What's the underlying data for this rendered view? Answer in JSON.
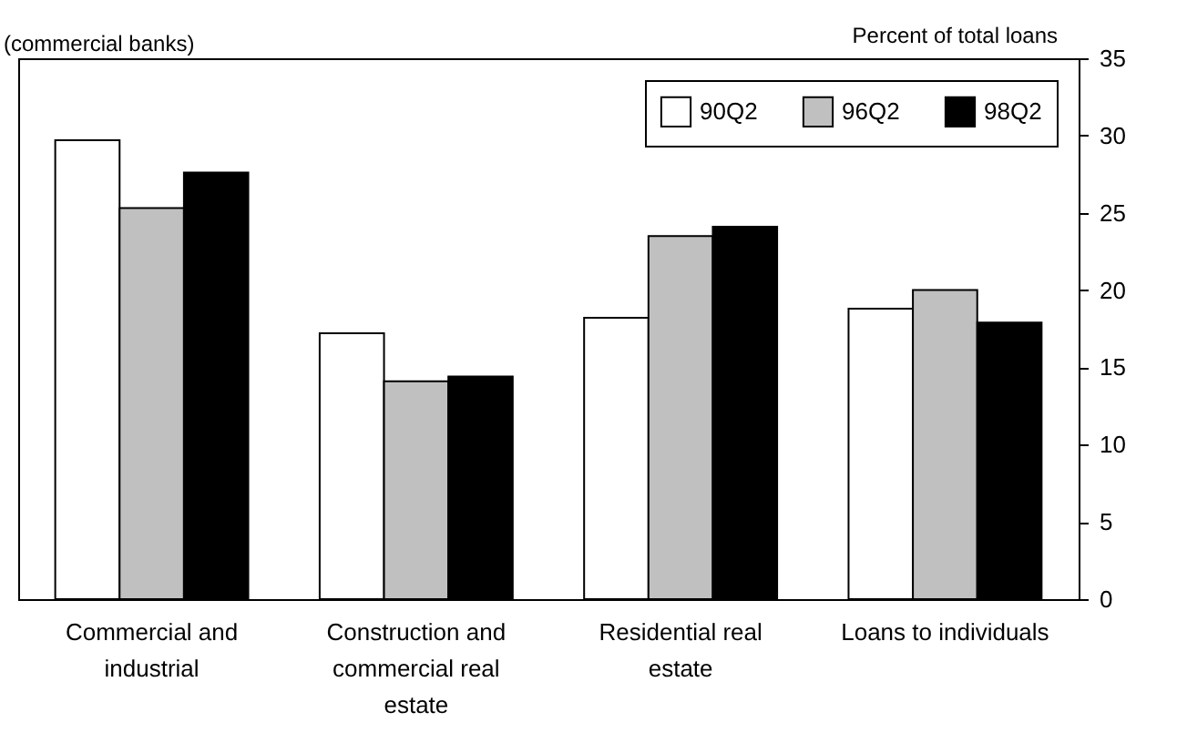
{
  "chart_data": {
    "type": "bar",
    "subtitle": "(commercial banks)",
    "ylabel": "Percent of total loans",
    "categories": [
      "Commercial and industrial",
      "Construction and commercial real estate",
      "Residential real estate",
      "Loans to individuals"
    ],
    "series": [
      {
        "name": "90Q2",
        "color": "#ffffff",
        "values": [
          29.7,
          17.2,
          18.2,
          18.8
        ]
      },
      {
        "name": "96Q2",
        "color": "#c0c0c0",
        "values": [
          25.3,
          14.1,
          23.5,
          20.0
        ]
      },
      {
        "name": "98Q2",
        "color": "#000000",
        "values": [
          27.6,
          14.4,
          24.1,
          17.9
        ]
      }
    ],
    "ylim": [
      0,
      35
    ],
    "yticks": [
      0,
      5,
      10,
      15,
      20,
      25,
      30,
      35
    ],
    "grid": false,
    "legend": "top right"
  }
}
